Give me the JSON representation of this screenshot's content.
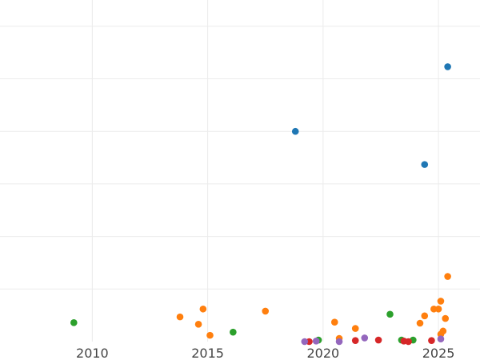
{
  "chart_data": {
    "type": "scatter",
    "title": "",
    "xlabel": "",
    "ylabel": "",
    "grid": true,
    "legend": "none",
    "xlim": [
      2006.0,
      2026.8
    ],
    "ylim": [
      0,
      6.5
    ],
    "x_ticks": [
      2010,
      2015,
      2020,
      2025
    ],
    "x_tick_labels": [
      "2010",
      "2015",
      "2020",
      "2025"
    ],
    "y_gridlines": [
      1,
      2,
      3,
      4,
      5,
      6
    ],
    "series": [
      {
        "color": "#1f77b4",
        "points": [
          [
            2018.8,
            4.0
          ],
          [
            2024.4,
            3.37
          ],
          [
            2025.4,
            5.23
          ]
        ]
      },
      {
        "color": "#ff7f0e",
        "points": [
          [
            2013.8,
            0.47
          ],
          [
            2014.6,
            0.33
          ],
          [
            2014.8,
            0.62
          ],
          [
            2015.1,
            0.12
          ],
          [
            2017.5,
            0.58
          ],
          [
            2020.5,
            0.37
          ],
          [
            2020.7,
            0.06
          ],
          [
            2021.4,
            0.25
          ],
          [
            2024.2,
            0.35
          ],
          [
            2024.4,
            0.49
          ],
          [
            2024.8,
            0.62
          ],
          [
            2025.0,
            0.62
          ],
          [
            2025.1,
            0.14
          ],
          [
            2025.1,
            0.77
          ],
          [
            2025.2,
            0.2
          ],
          [
            2025.3,
            0.44
          ],
          [
            2025.4,
            1.24
          ]
        ]
      },
      {
        "color": "#2ca02c",
        "points": [
          [
            2009.2,
            0.36
          ],
          [
            2016.1,
            0.18
          ],
          [
            2019.8,
            0.03
          ],
          [
            2022.9,
            0.52
          ],
          [
            2023.4,
            0.03
          ],
          [
            2023.9,
            0.03
          ]
        ]
      },
      {
        "color": "#d62728",
        "points": [
          [
            2019.4,
            0.0
          ],
          [
            2021.4,
            0.02
          ],
          [
            2022.4,
            0.03
          ],
          [
            2023.5,
            0.01
          ],
          [
            2023.7,
            0.0
          ],
          [
            2024.7,
            0.02
          ]
        ]
      },
      {
        "color": "#9467bd",
        "points": [
          [
            2019.2,
            0.0
          ],
          [
            2019.7,
            0.01
          ],
          [
            2020.7,
            0.0
          ],
          [
            2021.8,
            0.07
          ],
          [
            2025.1,
            0.05
          ]
        ]
      }
    ]
  }
}
